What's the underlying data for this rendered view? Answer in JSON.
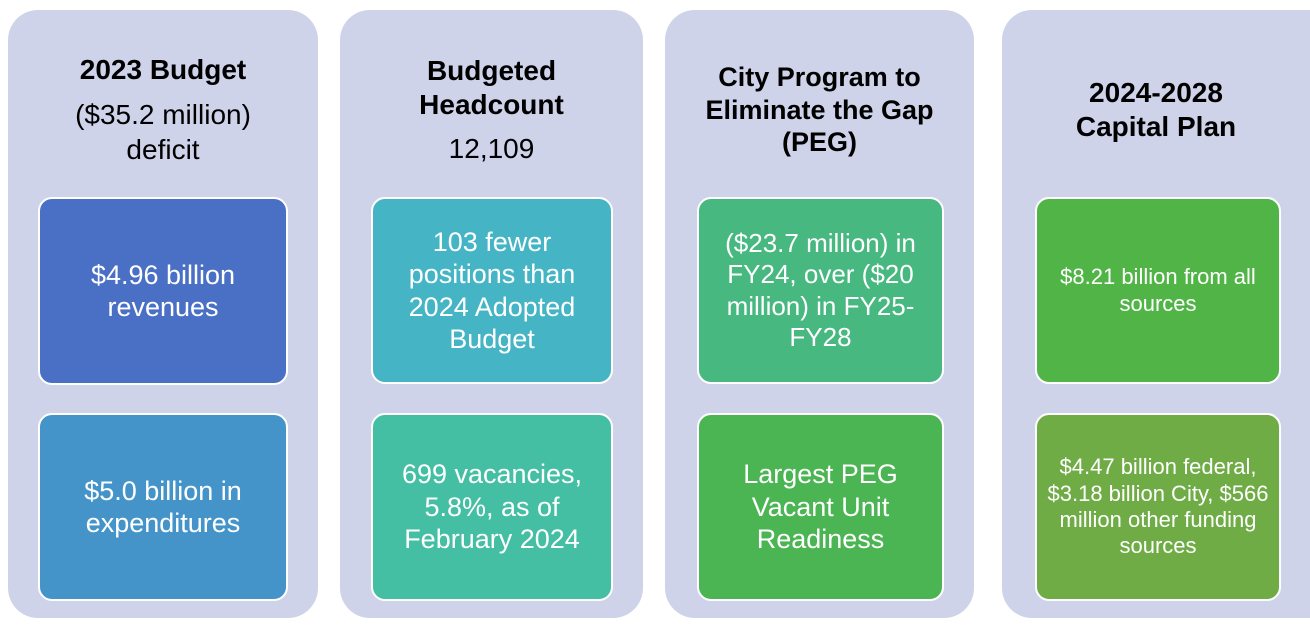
{
  "columns": [
    {
      "title": "2023 Budget",
      "subtitle": "($35.2 million) deficit",
      "boxes": [
        "$4.96 billion revenues",
        "$5.0 billion in expenditures"
      ]
    },
    {
      "title": "Budgeted Headcount",
      "subtitle": "12,109",
      "boxes": [
        "103 fewer positions than 2024 Adopted Budget",
        "699 vacancies, 5.8%, as of February 2024"
      ]
    },
    {
      "title": "City Program to Eliminate the Gap (PEG)",
      "boxes": [
        "($23.7 million) in FY24, over ($20 million) in FY25-FY28",
        "Largest PEG Vacant Unit Readiness"
      ]
    },
    {
      "title": "2024-2028 Capital Plan",
      "boxes": [
        "$8.21 billion from all sources",
        "$4.47 billion federal, $3.18 billion City, $566 million other funding sources"
      ]
    }
  ]
}
